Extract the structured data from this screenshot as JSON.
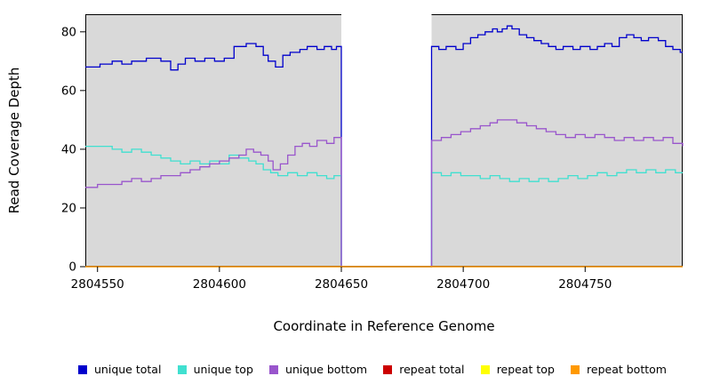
{
  "chart_data": {
    "type": "line",
    "subtype": "step",
    "title": "",
    "xlabel": "Coordinate in Reference Genome",
    "ylabel": "Read Coverage Depth",
    "xlim": [
      2804545,
      2804790
    ],
    "ylim": [
      0,
      86
    ],
    "x_ticks": [
      2804550,
      2804600,
      2804650,
      2804700,
      2804750
    ],
    "y_ticks": [
      0,
      20,
      40,
      60,
      80
    ],
    "panel_bg": "#d9d9d9",
    "grid": false,
    "legend_position": "bottom",
    "gap_region": {
      "start": 2804650,
      "end": 2804687,
      "color": "#ffffff"
    },
    "series": [
      {
        "name": "unique total",
        "color": "#0000CC",
        "points": [
          [
            2804545,
            68
          ],
          [
            2804551,
            69
          ],
          [
            2804556,
            70
          ],
          [
            2804560,
            69
          ],
          [
            2804564,
            70
          ],
          [
            2804570,
            71
          ],
          [
            2804576,
            70
          ],
          [
            2804580,
            67
          ],
          [
            2804583,
            69
          ],
          [
            2804586,
            71
          ],
          [
            2804590,
            70
          ],
          [
            2804594,
            71
          ],
          [
            2804598,
            70
          ],
          [
            2804602,
            71
          ],
          [
            2804606,
            75
          ],
          [
            2804611,
            76
          ],
          [
            2804615,
            75
          ],
          [
            2804618,
            72
          ],
          [
            2804620,
            70
          ],
          [
            2804623,
            68
          ],
          [
            2804626,
            72
          ],
          [
            2804629,
            73
          ],
          [
            2804633,
            74
          ],
          [
            2804636,
            75
          ],
          [
            2804640,
            74
          ],
          [
            2804643,
            75
          ],
          [
            2804646,
            74
          ],
          [
            2804648,
            75
          ],
          [
            2804650,
            0
          ],
          [
            2804687,
            75
          ],
          [
            2804690,
            74
          ],
          [
            2804693,
            75
          ],
          [
            2804697,
            74
          ],
          [
            2804700,
            76
          ],
          [
            2804703,
            78
          ],
          [
            2804706,
            79
          ],
          [
            2804709,
            80
          ],
          [
            2804712,
            81
          ],
          [
            2804714,
            80
          ],
          [
            2804716,
            81
          ],
          [
            2804718,
            82
          ],
          [
            2804720,
            81
          ],
          [
            2804723,
            79
          ],
          [
            2804726,
            78
          ],
          [
            2804729,
            77
          ],
          [
            2804732,
            76
          ],
          [
            2804735,
            75
          ],
          [
            2804738,
            74
          ],
          [
            2804741,
            75
          ],
          [
            2804745,
            74
          ],
          [
            2804748,
            75
          ],
          [
            2804752,
            74
          ],
          [
            2804755,
            75
          ],
          [
            2804758,
            76
          ],
          [
            2804761,
            75
          ],
          [
            2804764,
            78
          ],
          [
            2804767,
            79
          ],
          [
            2804770,
            78
          ],
          [
            2804773,
            77
          ],
          [
            2804776,
            78
          ],
          [
            2804780,
            77
          ],
          [
            2804783,
            75
          ],
          [
            2804786,
            74
          ],
          [
            2804789,
            73
          ],
          [
            2804790,
            73
          ]
        ]
      },
      {
        "name": "unique top",
        "color": "#40E0D0",
        "points": [
          [
            2804545,
            41
          ],
          [
            2804552,
            41
          ],
          [
            2804556,
            40
          ],
          [
            2804560,
            39
          ],
          [
            2804564,
            40
          ],
          [
            2804568,
            39
          ],
          [
            2804572,
            38
          ],
          [
            2804576,
            37
          ],
          [
            2804580,
            36
          ],
          [
            2804584,
            35
          ],
          [
            2804588,
            36
          ],
          [
            2804592,
            35
          ],
          [
            2804596,
            36
          ],
          [
            2804600,
            35
          ],
          [
            2804604,
            38
          ],
          [
            2804608,
            37
          ],
          [
            2804612,
            36
          ],
          [
            2804615,
            35
          ],
          [
            2804618,
            33
          ],
          [
            2804621,
            32
          ],
          [
            2804624,
            31
          ],
          [
            2804628,
            32
          ],
          [
            2804632,
            31
          ],
          [
            2804636,
            32
          ],
          [
            2804640,
            31
          ],
          [
            2804644,
            30
          ],
          [
            2804647,
            31
          ],
          [
            2804650,
            0
          ],
          [
            2804687,
            32
          ],
          [
            2804691,
            31
          ],
          [
            2804695,
            32
          ],
          [
            2804699,
            31
          ],
          [
            2804703,
            31
          ],
          [
            2804707,
            30
          ],
          [
            2804711,
            31
          ],
          [
            2804715,
            30
          ],
          [
            2804719,
            29
          ],
          [
            2804723,
            30
          ],
          [
            2804727,
            29
          ],
          [
            2804731,
            30
          ],
          [
            2804735,
            29
          ],
          [
            2804739,
            30
          ],
          [
            2804743,
            31
          ],
          [
            2804747,
            30
          ],
          [
            2804751,
            31
          ],
          [
            2804755,
            32
          ],
          [
            2804759,
            31
          ],
          [
            2804763,
            32
          ],
          [
            2804767,
            33
          ],
          [
            2804771,
            32
          ],
          [
            2804775,
            33
          ],
          [
            2804779,
            32
          ],
          [
            2804783,
            33
          ],
          [
            2804787,
            32
          ],
          [
            2804790,
            32
          ]
        ]
      },
      {
        "name": "unique bottom",
        "color": "#9955CC",
        "points": [
          [
            2804545,
            27
          ],
          [
            2804550,
            28
          ],
          [
            2804556,
            28
          ],
          [
            2804560,
            29
          ],
          [
            2804564,
            30
          ],
          [
            2804568,
            29
          ],
          [
            2804572,
            30
          ],
          [
            2804576,
            31
          ],
          [
            2804580,
            31
          ],
          [
            2804584,
            32
          ],
          [
            2804588,
            33
          ],
          [
            2804592,
            34
          ],
          [
            2804596,
            35
          ],
          [
            2804600,
            36
          ],
          [
            2804604,
            37
          ],
          [
            2804608,
            38
          ],
          [
            2804611,
            40
          ],
          [
            2804614,
            39
          ],
          [
            2804617,
            38
          ],
          [
            2804620,
            36
          ],
          [
            2804622,
            33
          ],
          [
            2804625,
            35
          ],
          [
            2804628,
            38
          ],
          [
            2804631,
            41
          ],
          [
            2804634,
            42
          ],
          [
            2804637,
            41
          ],
          [
            2804640,
            43
          ],
          [
            2804644,
            42
          ],
          [
            2804647,
            44
          ],
          [
            2804650,
            0
          ],
          [
            2804687,
            43
          ],
          [
            2804691,
            44
          ],
          [
            2804695,
            45
          ],
          [
            2804699,
            46
          ],
          [
            2804703,
            47
          ],
          [
            2804707,
            48
          ],
          [
            2804711,
            49
          ],
          [
            2804714,
            50
          ],
          [
            2804718,
            50
          ],
          [
            2804722,
            49
          ],
          [
            2804726,
            48
          ],
          [
            2804730,
            47
          ],
          [
            2804734,
            46
          ],
          [
            2804738,
            45
          ],
          [
            2804742,
            44
          ],
          [
            2804746,
            45
          ],
          [
            2804750,
            44
          ],
          [
            2804754,
            45
          ],
          [
            2804758,
            44
          ],
          [
            2804762,
            43
          ],
          [
            2804766,
            44
          ],
          [
            2804770,
            43
          ],
          [
            2804774,
            44
          ],
          [
            2804778,
            43
          ],
          [
            2804782,
            44
          ],
          [
            2804786,
            42
          ],
          [
            2804790,
            41
          ]
        ]
      },
      {
        "name": "repeat total",
        "color": "#CC0000",
        "points": [
          [
            2804545,
            0
          ],
          [
            2804790,
            0
          ]
        ]
      },
      {
        "name": "repeat top",
        "color": "#FFFF00",
        "points": [
          [
            2804545,
            0
          ],
          [
            2804790,
            0
          ]
        ]
      },
      {
        "name": "repeat bottom",
        "color": "#FF9900",
        "points": [
          [
            2804545,
            0
          ],
          [
            2804790,
            0
          ]
        ]
      }
    ]
  }
}
